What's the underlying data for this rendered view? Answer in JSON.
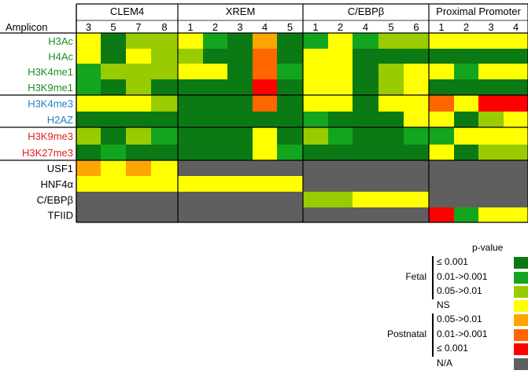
{
  "header": {
    "amplicon_label": "Amplicon",
    "groups": [
      {
        "name": "CLEM4",
        "cols": [
          "3",
          "5",
          "7",
          "8"
        ]
      },
      {
        "name": "XREM",
        "cols": [
          "1",
          "2",
          "3",
          "4",
          "5"
        ]
      },
      {
        "name": "C/EBPβ",
        "cols": [
          "1",
          "2",
          "4",
          "5",
          "6"
        ]
      },
      {
        "name": "Proximal Promoter",
        "cols": [
          "1",
          "2",
          "3",
          "4"
        ]
      }
    ]
  },
  "colors": {
    "DG": "#0b7a14",
    "MG": "#14a51f",
    "LG": "#99cc00",
    "Y": "#ffff00",
    "O": "#ffa500",
    "OR": "#ff6600",
    "R": "#ff0000",
    "GR": "#5f5f5f",
    "W": "#ffffff"
  },
  "rows": [
    {
      "label": "H3Ac",
      "color": "#228b22",
      "cells": [
        "Y",
        "DG",
        "LG",
        "LG",
        "Y",
        "MG",
        "DG",
        "O",
        "DG",
        "MG",
        "Y",
        "MG",
        "LG",
        "LG",
        "Y",
        "Y",
        "Y",
        "Y"
      ]
    },
    {
      "label": "H4Ac",
      "color": "#228b22",
      "cells": [
        "Y",
        "DG",
        "Y",
        "LG",
        "LG",
        "DG",
        "DG",
        "OR",
        "DG",
        "Y",
        "Y",
        "DG",
        "DG",
        "DG",
        "DG",
        "DG",
        "DG",
        "DG"
      ]
    },
    {
      "label": "H3K4me1",
      "color": "#228b22",
      "cells": [
        "MG",
        "LG",
        "LG",
        "LG",
        "Y",
        "Y",
        "DG",
        "OR",
        "MG",
        "Y",
        "Y",
        "DG",
        "LG",
        "Y",
        "Y",
        "MG",
        "Y",
        "Y"
      ]
    },
    {
      "label": "H3K9me1",
      "color": "#228b22",
      "cells": [
        "MG",
        "DG",
        "LG",
        "DG",
        "DG",
        "DG",
        "DG",
        "R",
        "DG",
        "Y",
        "Y",
        "DG",
        "LG",
        "Y",
        "DG",
        "DG",
        "DG",
        "DG"
      ]
    },
    {
      "label": "H3K4me3",
      "color": "#1e7fc9",
      "cells": [
        "Y",
        "Y",
        "Y",
        "LG",
        "DG",
        "DG",
        "DG",
        "OR",
        "DG",
        "Y",
        "Y",
        "DG",
        "Y",
        "Y",
        "OR",
        "Y",
        "R",
        "R"
      ]
    },
    {
      "label": "H2AZ",
      "color": "#1e7fc9",
      "cells": [
        "DG",
        "DG",
        "DG",
        "DG",
        "DG",
        "DG",
        "DG",
        "DG",
        "DG",
        "MG",
        "DG",
        "DG",
        "DG",
        "Y",
        "Y",
        "DG",
        "LG",
        "Y"
      ]
    },
    {
      "label": "H3K9me3",
      "color": "#e0201a",
      "cells": [
        "LG",
        "DG",
        "LG",
        "MG",
        "DG",
        "DG",
        "DG",
        "Y",
        "DG",
        "LG",
        "MG",
        "DG",
        "DG",
        "MG",
        "MG",
        "Y",
        "Y",
        "Y"
      ]
    },
    {
      "label": "H3K27me3",
      "color": "#e0201a",
      "cells": [
        "DG",
        "MG",
        "DG",
        "DG",
        "DG",
        "DG",
        "DG",
        "Y",
        "MG",
        "DG",
        "DG",
        "DG",
        "DG",
        "DG",
        "Y",
        "DG",
        "LG",
        "LG"
      ]
    },
    {
      "label": "USF1",
      "color": "#000000",
      "cells": [
        "O",
        "Y",
        "O",
        "Y",
        "GR",
        "GR",
        "GR",
        "GR",
        "GR",
        "GR",
        "GR",
        "GR",
        "GR",
        "GR",
        "GR",
        "GR",
        "GR",
        "GR"
      ]
    },
    {
      "label": "HNF4α",
      "color": "#000000",
      "cells": [
        "Y",
        "Y",
        "Y",
        "Y",
        "Y",
        "Y",
        "Y",
        "Y",
        "Y",
        "GR",
        "GR",
        "GR",
        "GR",
        "GR",
        "GR",
        "GR",
        "GR",
        "GR"
      ]
    },
    {
      "label": "C/EBPβ",
      "color": "#000000",
      "cells": [
        "GR",
        "GR",
        "GR",
        "GR",
        "GR",
        "GR",
        "GR",
        "GR",
        "GR",
        "LG",
        "LG",
        "Y",
        "Y",
        "Y",
        "GR",
        "GR",
        "GR",
        "GR"
      ]
    },
    {
      "label": "TFIID",
      "color": "#000000",
      "cells": [
        "GR",
        "GR",
        "GR",
        "GR",
        "GR",
        "GR",
        "GR",
        "GR",
        "GR",
        "GR",
        "GR",
        "GR",
        "GR",
        "GR",
        "R",
        "MG",
        "Y",
        "Y"
      ]
    }
  ],
  "legend": {
    "title": "p-value",
    "fetal_label": "Fetal",
    "postnatal_label": "Postnatal",
    "items": [
      {
        "text": "≤ 0.001",
        "color": "#0b7a14"
      },
      {
        "text": "0.01->0.001",
        "color": "#14a51f"
      },
      {
        "text": "0.05->0.01",
        "color": "#99cc00"
      },
      {
        "text": "NS",
        "color": "#ffff00"
      },
      {
        "text": "0.05->0.01",
        "color": "#ffa500"
      },
      {
        "text": "0.01->0.001",
        "color": "#ff6600"
      },
      {
        "text": "≤ 0.001",
        "color": "#ff0000"
      },
      {
        "text": "N/A",
        "color": "#5f5f5f"
      }
    ]
  }
}
